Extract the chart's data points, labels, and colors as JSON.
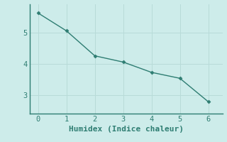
{
  "x": [
    0,
    1,
    2,
    3,
    4,
    5,
    6
  ],
  "y": [
    5.62,
    5.05,
    4.25,
    4.05,
    3.72,
    3.53,
    2.78
  ],
  "xlabel": "Humidex (Indice chaleur)",
  "line_color": "#2e7d72",
  "bg_color": "#cdecea",
  "grid_color": "#b8dbd8",
  "xlim": [
    -0.3,
    6.5
  ],
  "ylim": [
    2.4,
    5.9
  ],
  "yticks": [
    3,
    4,
    5
  ],
  "xticks": [
    0,
    1,
    2,
    3,
    4,
    5,
    6
  ],
  "tick_color": "#2e7d72",
  "spine_color": "#2e7d72",
  "xlabel_fontsize": 8,
  "tick_fontsize": 7.5,
  "marker": "D",
  "marker_size": 2.5,
  "linewidth": 1.0
}
